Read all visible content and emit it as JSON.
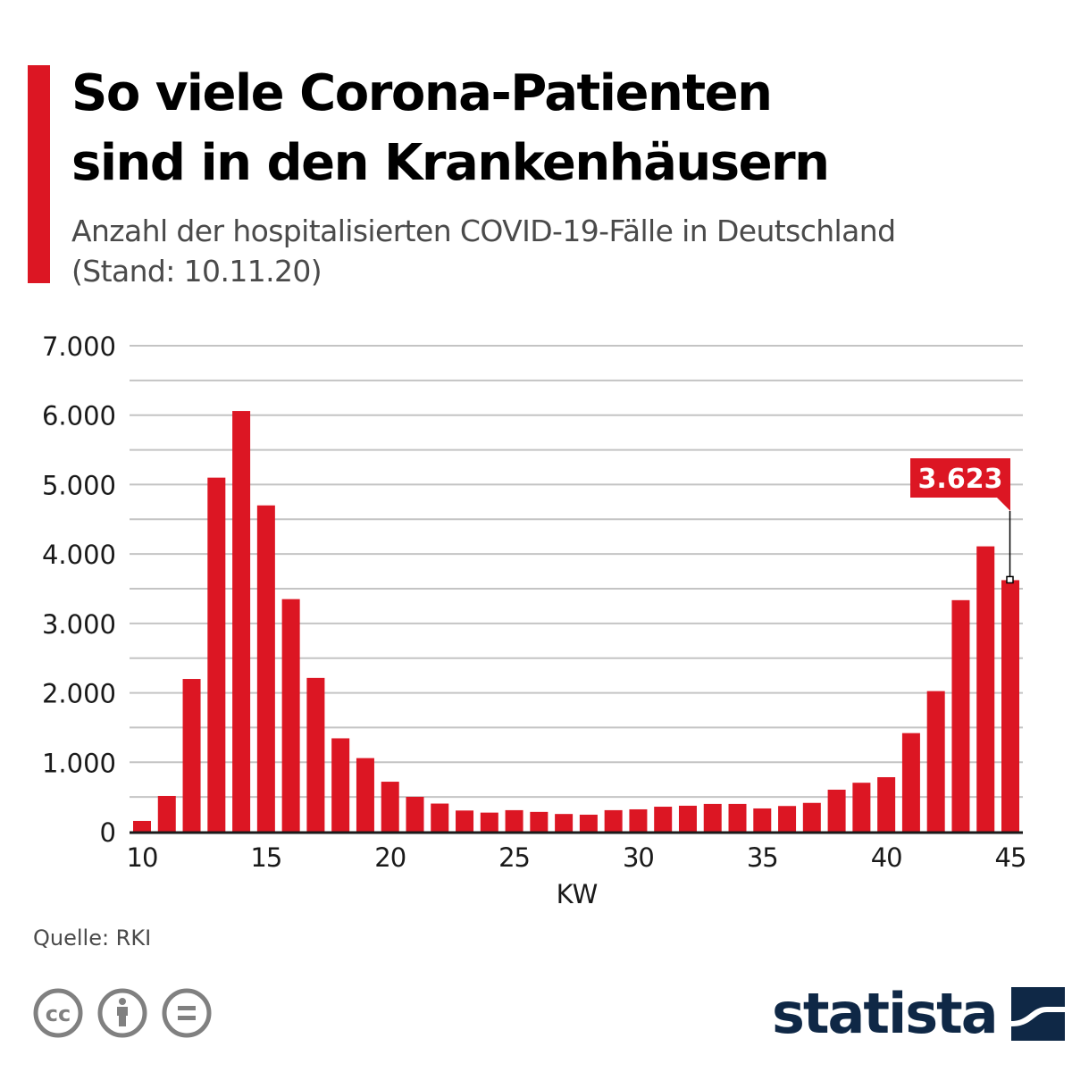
{
  "header": {
    "title_lines": [
      "So viele Corona-Patienten",
      "sind in den Krankenhäusern"
    ],
    "subtitle_lines": [
      "Anzahl der hospitalisierten COVID-19-Fälle in Deutschland",
      "(Stand: 10.11.20)"
    ]
  },
  "colors": {
    "accent": "#dc1623",
    "bar": "#dc1623",
    "grid": "#c4c4c4",
    "axis": "#1a1a1a",
    "brand": "#0f2846",
    "icon_gray": "#808080"
  },
  "chart_data": {
    "type": "bar",
    "title": "So viele Corona-Patienten sind in den Krankenhäusern",
    "subtitle": "Anzahl der hospitalisierten COVID-19-Fälle in Deutschland (Stand: 10.11.20)",
    "xlabel": "KW",
    "ylabel": "",
    "ylim": [
      0,
      7000
    ],
    "grid": true,
    "grid_step": 500,
    "yticks": [
      0,
      1000,
      2000,
      3000,
      4000,
      5000,
      6000,
      7000
    ],
    "ytick_labels": [
      "0",
      "1.000",
      "2.000",
      "3.000",
      "4.000",
      "5.000",
      "6.000",
      "7.000"
    ],
    "xticks": [
      10,
      15,
      20,
      25,
      30,
      35,
      40,
      45
    ],
    "xtick_labels": [
      "10",
      "15",
      "20",
      "25",
      "30",
      "35",
      "40",
      "45"
    ],
    "categories": [
      10,
      11,
      12,
      13,
      14,
      15,
      16,
      17,
      18,
      19,
      20,
      21,
      22,
      23,
      24,
      25,
      26,
      27,
      28,
      29,
      30,
      31,
      32,
      33,
      34,
      35,
      36,
      37,
      38,
      39,
      40,
      41,
      42,
      43,
      44,
      45
    ],
    "values": [
      155,
      515,
      2200,
      5100,
      6060,
      4700,
      3350,
      2215,
      1345,
      1060,
      720,
      502,
      405,
      305,
      275,
      310,
      285,
      255,
      245,
      310,
      322,
      360,
      374,
      400,
      400,
      335,
      370,
      415,
      605,
      705,
      785,
      1420,
      2025,
      3335,
      4110,
      3623
    ],
    "annotation": {
      "category": 45,
      "value": 3623,
      "label": "3.623"
    },
    "legend": "none"
  },
  "footer": {
    "source": "Quelle: RKI",
    "license_icons": [
      "cc-icon",
      "attribution-icon",
      "no-derivatives-icon"
    ],
    "brand": "statista"
  }
}
